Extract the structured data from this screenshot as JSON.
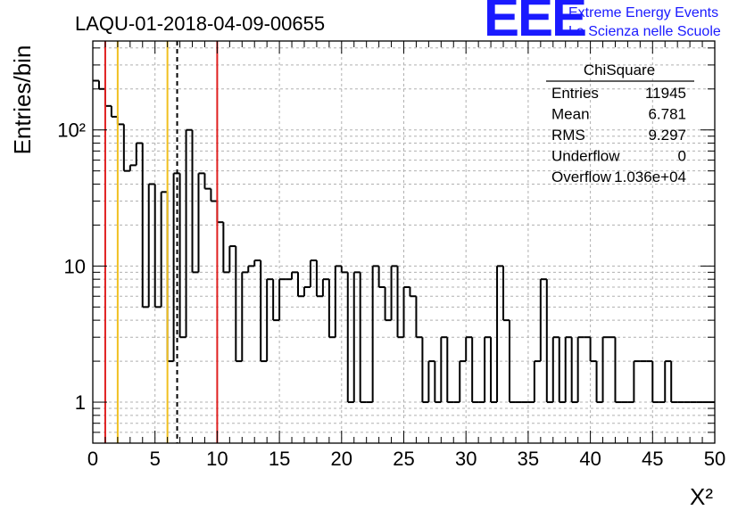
{
  "chart_data": {
    "type": "histogram",
    "title": "LAQU-01-2018-04-09-00655",
    "xlabel": "X²",
    "ylabel": "Entries/bin",
    "xlim": [
      0,
      50
    ],
    "ylim": [
      0.5,
      450
    ],
    "yscale": "log",
    "grid": true,
    "bin_width": 0.5,
    "x_ticks": [
      0,
      5,
      10,
      15,
      20,
      25,
      30,
      35,
      40,
      45,
      50
    ],
    "x_tick_labels": [
      "0",
      "5",
      "10",
      "15",
      "20",
      "25",
      "30",
      "35",
      "40",
      "45",
      "50"
    ],
    "y_ticks": [
      1,
      10,
      100
    ],
    "y_tick_labels": [
      "1",
      "10",
      "10²"
    ],
    "values": [
      230,
      200,
      150,
      125,
      110,
      50,
      55,
      80,
      5,
      40,
      5,
      35,
      2,
      48,
      3,
      100,
      9,
      48,
      37,
      30,
      21,
      9,
      14,
      2,
      9,
      10,
      11,
      2,
      8,
      4,
      8,
      8,
      9,
      6,
      7,
      11,
      6,
      8,
      3,
      10,
      9,
      1,
      9,
      1,
      1,
      10,
      7,
      4,
      10,
      3,
      7,
      6,
      3,
      1,
      2,
      1,
      3,
      1,
      1,
      2,
      3,
      1,
      1,
      3,
      1,
      10,
      4,
      1,
      1,
      1,
      1,
      2,
      8,
      1,
      3,
      1,
      3,
      1,
      3,
      3,
      2,
      1,
      3,
      3,
      1,
      1,
      1,
      2,
      2,
      2,
      1,
      1,
      2,
      1,
      1,
      1,
      1,
      1,
      1,
      1
    ],
    "vertical_lines": [
      {
        "x": 1.0,
        "color": "#e02020",
        "style": "solid"
      },
      {
        "x": 2.0,
        "color": "#f0c020",
        "style": "solid"
      },
      {
        "x": 6.0,
        "color": "#f0c020",
        "style": "solid"
      },
      {
        "x": 6.781,
        "color": "#000000",
        "style": "dashed"
      },
      {
        "x": 10.0,
        "color": "#e02020",
        "style": "solid"
      }
    ],
    "stats_box": {
      "title": "ChiSquare",
      "rows": [
        {
          "label": "Entries",
          "value": "11945"
        },
        {
          "label": "Mean",
          "value": "6.781"
        },
        {
          "label": "RMS",
          "value": "9.297"
        },
        {
          "label": "Underflow",
          "value": "0"
        },
        {
          "label": "Overflow",
          "value": "1.036e+04"
        }
      ]
    }
  },
  "logo": {
    "text": "EEE",
    "line1": "Extreme Energy Events",
    "line2": "La Scienza nelle Scuole",
    "color": "#1a1aff"
  }
}
